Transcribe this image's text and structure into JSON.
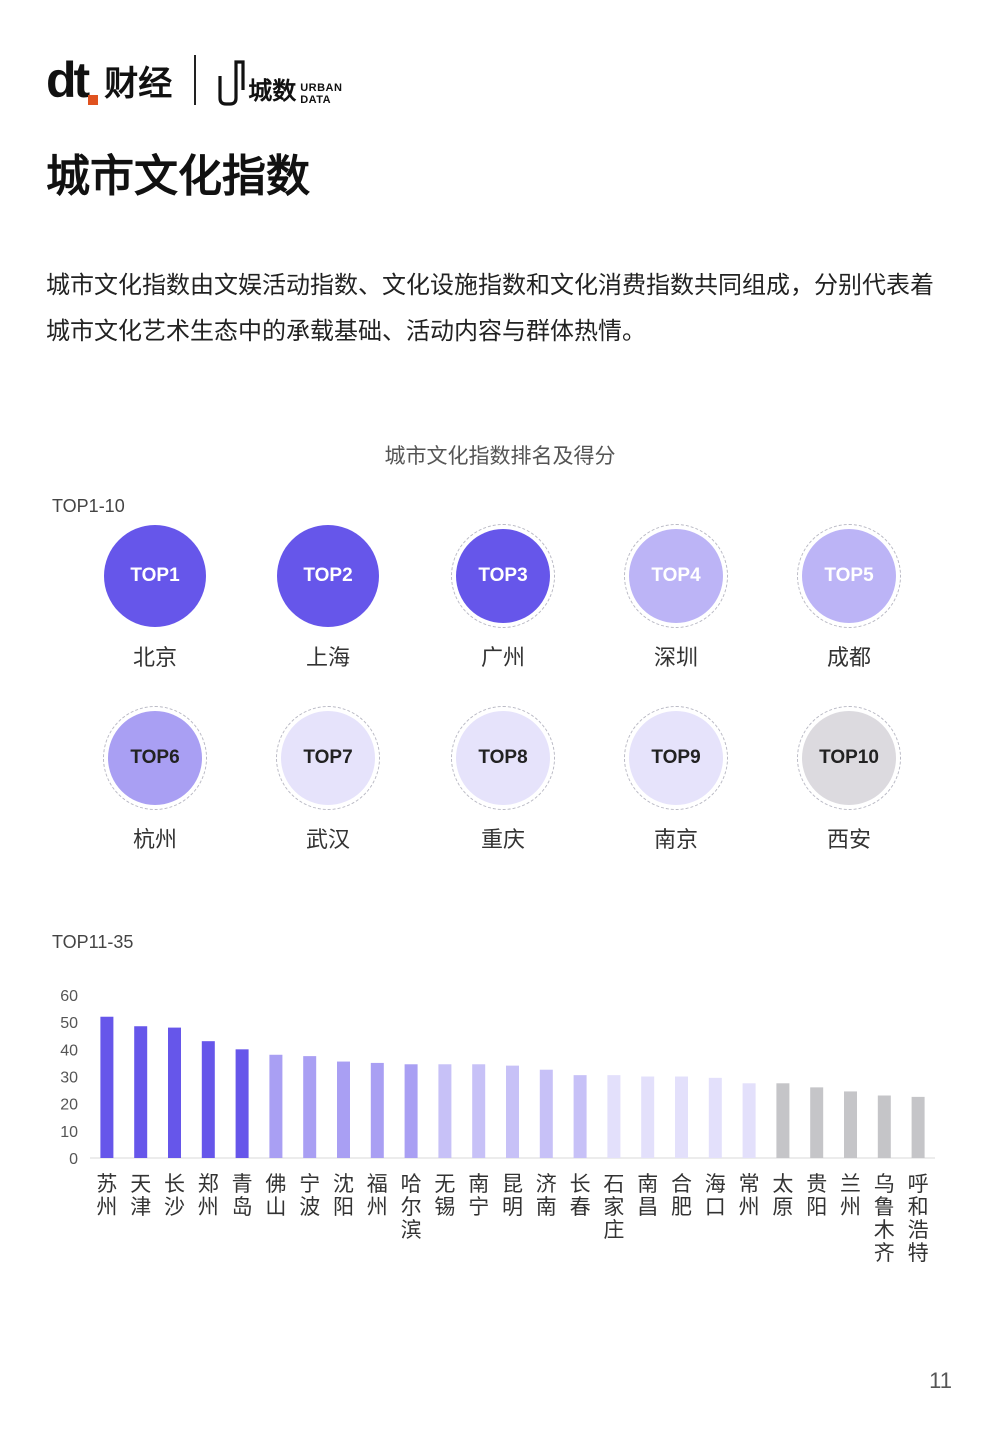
{
  "header": {
    "logo1_mark": "dt",
    "logo1_text": "财经",
    "logo2_text": "城数",
    "logo2_en_line1": "URBAN",
    "logo2_en_line2": "DATA"
  },
  "page_title": "城市文化指数",
  "intro": "城市文化指数由文娱活动指数、文化设施指数和文化消费指数共同组成，分别代表着城市文化艺术生态中的承载基础、活动内容与群体热情。",
  "chart_title": "城市文化指数排名及得分",
  "top10_label": "TOP1-10",
  "top35_label": "TOP11-35",
  "top10": [
    {
      "rank": "TOP1",
      "city": "北京",
      "fill": "#6656ea",
      "text": "#ffffff",
      "ring": false
    },
    {
      "rank": "TOP2",
      "city": "上海",
      "fill": "#6656ea",
      "text": "#ffffff",
      "ring": false
    },
    {
      "rank": "TOP3",
      "city": "广州",
      "fill": "#6656ea",
      "text": "#ffffff",
      "ring": true
    },
    {
      "rank": "TOP4",
      "city": "深圳",
      "fill": "#bcb4f6",
      "text": "#ffffff",
      "ring": true
    },
    {
      "rank": "TOP5",
      "city": "成都",
      "fill": "#bcb4f6",
      "text": "#ffffff",
      "ring": true
    },
    {
      "rank": "TOP6",
      "city": "杭州",
      "fill": "#a99ff3",
      "text": "#222222",
      "ring": true
    },
    {
      "rank": "TOP7",
      "city": "武汉",
      "fill": "#e6e3fb",
      "text": "#222222",
      "ring": true
    },
    {
      "rank": "TOP8",
      "city": "重庆",
      "fill": "#e6e3fb",
      "text": "#222222",
      "ring": true
    },
    {
      "rank": "TOP9",
      "city": "南京",
      "fill": "#e6e3fb",
      "text": "#222222",
      "ring": true
    },
    {
      "rank": "TOP10",
      "city": "西安",
      "fill": "#dcdadf",
      "text": "#222222",
      "ring": true
    }
  ],
  "chart_data": {
    "type": "bar",
    "title": "",
    "categories": [
      "苏州",
      "天津",
      "长沙",
      "郑州",
      "青岛",
      "佛山",
      "宁波",
      "沈阳",
      "福州",
      "哈尔滨",
      "无锡",
      "南宁",
      "昆明",
      "济南",
      "长春",
      "石家庄",
      "南昌",
      "合肥",
      "海口",
      "常州",
      "太原",
      "贵阳",
      "兰州",
      "乌鲁木齐",
      "呼和浩特"
    ],
    "values": [
      52,
      48.5,
      48,
      43,
      40,
      38,
      37.5,
      35.5,
      35,
      34.5,
      34.5,
      34.5,
      34,
      32.5,
      30.5,
      30.5,
      30,
      30,
      29.5,
      27.5,
      27.5,
      26,
      24.5,
      23,
      22.5
    ],
    "colors": [
      "#6656ea",
      "#6656ea",
      "#6656ea",
      "#6656ea",
      "#6656ea",
      "#a99ff3",
      "#a99ff3",
      "#a99ff3",
      "#a99ff3",
      "#a99ff3",
      "#c7c1f7",
      "#c7c1f7",
      "#c7c1f7",
      "#c7c1f7",
      "#c7c1f7",
      "#e3e0fb",
      "#e3e0fb",
      "#e3e0fb",
      "#e3e0fb",
      "#e3e0fb",
      "#c5c5c8",
      "#c5c5c8",
      "#c5c5c8",
      "#c5c5c8",
      "#c5c5c8"
    ],
    "ylim": [
      0,
      60
    ],
    "yticks": [
      0,
      10,
      20,
      30,
      40,
      50,
      60
    ],
    "xlabel": "",
    "ylabel": "",
    "grid": false
  },
  "page_number": "11"
}
